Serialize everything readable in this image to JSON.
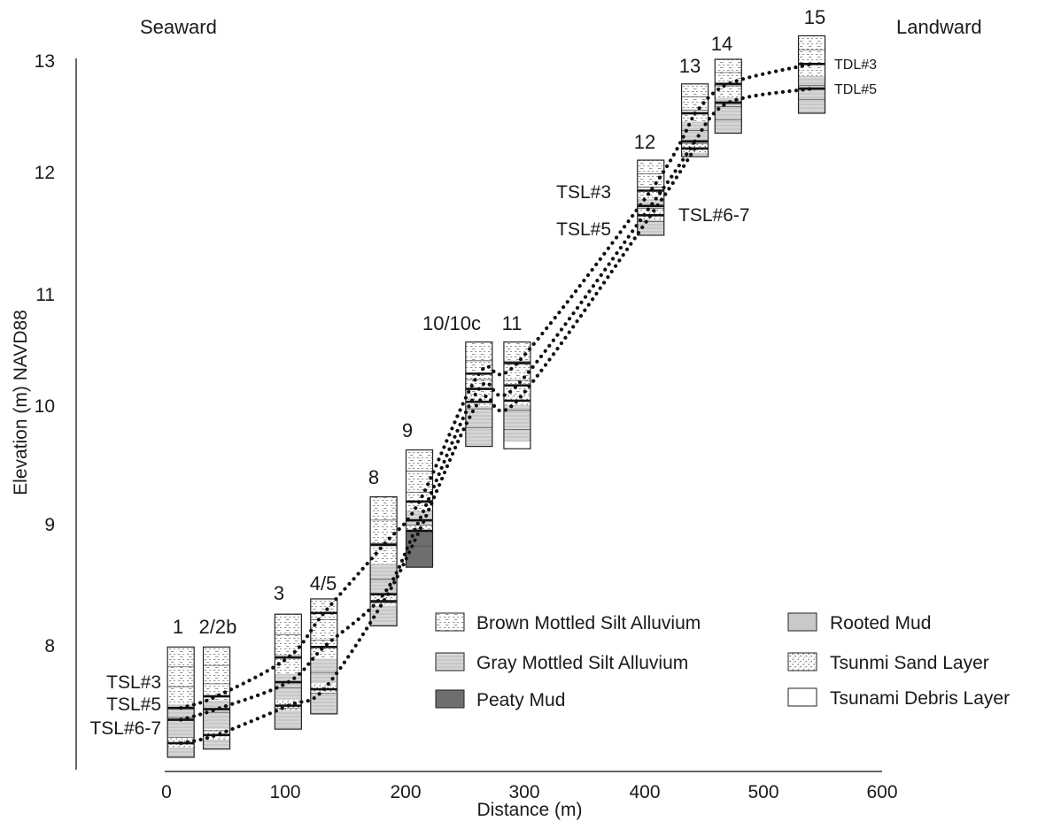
{
  "header": {
    "left": "Seaward",
    "right": "Landward"
  },
  "axes": {
    "ylabel": "Elevation (m) NAVD88",
    "xlabel": "Distance (m)",
    "yticks": [
      "8",
      "9",
      "10",
      "11",
      "12",
      "13"
    ],
    "xticks": [
      "0",
      "100",
      "200",
      "300",
      "400",
      "500",
      "600"
    ],
    "xlim": [
      0,
      600
    ],
    "ylim": [
      7.05,
      13.05
    ]
  },
  "cores": [
    {
      "id": "1",
      "label": "1",
      "x": 12,
      "top": 7.99,
      "bottom": 7.05
    },
    {
      "id": "2",
      "label": "2/2b",
      "x": 42,
      "top": 7.99,
      "bottom": 7.12
    },
    {
      "id": "3",
      "label": "3",
      "x": 102,
      "top": 8.27,
      "bottom": 7.29
    },
    {
      "id": "45",
      "label": "4/5",
      "x": 132,
      "top": 8.4,
      "bottom": 7.42
    },
    {
      "id": "8",
      "label": "8",
      "x": 182,
      "top": 9.27,
      "bottom": 8.17
    },
    {
      "id": "9",
      "label": "9",
      "x": 212,
      "top": 9.67,
      "bottom": 8.67
    },
    {
      "id": "10",
      "label": "10/10c",
      "x": 262,
      "top": 10.59,
      "bottom": 9.7
    },
    {
      "id": "11",
      "label": "11",
      "x": 294,
      "top": 10.59,
      "bottom": 9.68
    },
    {
      "id": "12",
      "label": "12",
      "x": 406,
      "top": 12.14,
      "bottom": 11.5
    },
    {
      "id": "13",
      "label": "13",
      "x": 443,
      "top": 12.79,
      "bottom": 12.17
    },
    {
      "id": "14",
      "label": "14",
      "x": 471,
      "top": 13.0,
      "bottom": 12.37
    },
    {
      "id": "15",
      "label": "15",
      "x": 541,
      "top": 13.2,
      "bottom": 12.54
    }
  ],
  "correlations": [
    {
      "name": "TSL#3",
      "points": [
        [
          12,
          7.47
        ],
        [
          42,
          7.57
        ],
        [
          102,
          7.9
        ],
        [
          132,
          8.28
        ],
        [
          182,
          8.86
        ],
        [
          212,
          9.23
        ],
        [
          262,
          10.32
        ],
        [
          294,
          10.41
        ],
        [
          406,
          11.88
        ],
        [
          443,
          12.54
        ]
      ]
    },
    {
      "name": "TSL#5",
      "points": [
        [
          12,
          7.37
        ],
        [
          42,
          7.46
        ],
        [
          102,
          7.69
        ],
        [
          132,
          7.99
        ],
        [
          182,
          8.44
        ],
        [
          212,
          9.07
        ],
        [
          262,
          10.19
        ],
        [
          294,
          10.22
        ],
        [
          406,
          11.75
        ],
        [
          443,
          12.3
        ]
      ]
    },
    {
      "name": "TSL#6-7",
      "points": [
        [
          12,
          7.17
        ],
        [
          42,
          7.24
        ],
        [
          102,
          7.49
        ],
        [
          132,
          7.63
        ],
        [
          182,
          8.38
        ],
        [
          212,
          8.98
        ],
        [
          262,
          10.08
        ],
        [
          294,
          10.09
        ],
        [
          406,
          11.67
        ],
        [
          443,
          12.24
        ]
      ]
    },
    {
      "name": "TDL#3",
      "points": [
        [
          443,
          12.54
        ],
        [
          471,
          12.79
        ],
        [
          541,
          12.96
        ]
      ]
    },
    {
      "name": "TDL#5",
      "points": [
        [
          443,
          12.3
        ],
        [
          471,
          12.63
        ],
        [
          541,
          12.75
        ]
      ]
    }
  ],
  "line_labels": {
    "left_tsl3": "TSL#3",
    "left_tsl5": "TSL#5",
    "left_tsl67": "TSL#6-7",
    "mid_tsl3": "TSL#3",
    "mid_tsl5": "TSL#5",
    "mid_tsl67": "TSL#6-7",
    "tdl3": "TDL#3",
    "tdl5": "TDL#5"
  },
  "legend": {
    "brown": "Brown Mottled Silt Alluvium",
    "gray": "Gray Mottled Silt Alluvium",
    "peaty": "Peaty Mud",
    "rooted": "Rooted Mud",
    "sand": "Tsunmi Sand Layer",
    "debris": "Tsunami Debris Layer"
  },
  "colors": {
    "axis": "#333333",
    "ink": "#1a1a1a",
    "gray_fill": "#d4d4d4",
    "rooted_fill": "#c9c9c9",
    "peaty_fill": "#6e6e6e"
  }
}
